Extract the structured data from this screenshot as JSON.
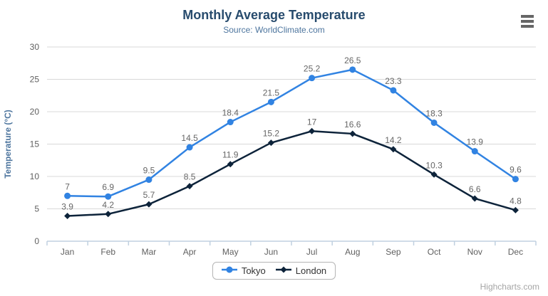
{
  "title": "Monthly Average Temperature",
  "subtitle": "Source: WorldClimate.com",
  "credits": "Highcharts.com",
  "colors": {
    "title": "#274b6d",
    "subtitle": "#4d759e",
    "axis_title": "#4d759e",
    "axis_label": "#606060",
    "data_label": "#666666",
    "gridline": "#d8d8d8",
    "axis_line": "#c0d0e0",
    "menu_icon": "#666666"
  },
  "chart_data": {
    "type": "line",
    "title": "Monthly Average Temperature",
    "subtitle": "Source: WorldClimate.com",
    "xlabel": "",
    "ylabel": "Temperature (°C)",
    "ylim": [
      0,
      30
    ],
    "y_ticks": [
      0,
      5,
      10,
      15,
      20,
      25,
      30
    ],
    "grid": true,
    "legend_position": "bottom",
    "data_labels": true,
    "categories": [
      "Jan",
      "Feb",
      "Mar",
      "Apr",
      "May",
      "Jun",
      "Jul",
      "Aug",
      "Sep",
      "Oct",
      "Nov",
      "Dec"
    ],
    "series": [
      {
        "name": "Tokyo",
        "color": "#3183e2",
        "marker": "circle",
        "values": [
          7,
          6.9,
          9.5,
          14.5,
          18.4,
          21.5,
          25.2,
          26.5,
          23.3,
          18.3,
          13.9,
          9.6
        ]
      },
      {
        "name": "London",
        "color": "#0d233a",
        "marker": "diamond",
        "values": [
          3.9,
          4.2,
          5.7,
          8.5,
          11.9,
          15.2,
          17,
          16.6,
          14.2,
          10.3,
          6.6,
          4.8
        ]
      }
    ]
  }
}
